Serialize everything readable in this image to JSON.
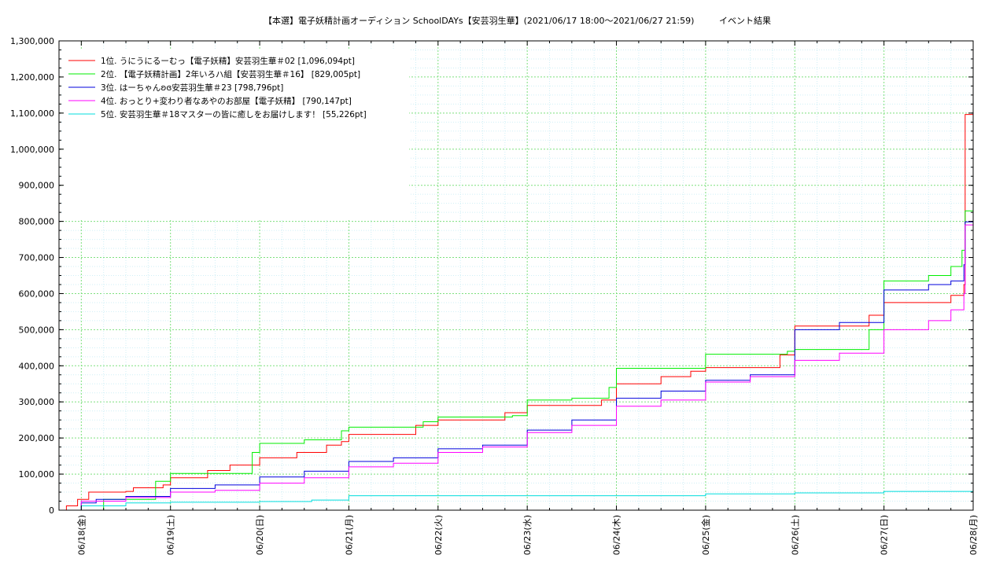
{
  "chart_data": {
    "type": "line",
    "title": "【本選】電子妖精計画オーディション SchoolDAYs【安芸羽生華】(2021/06/17 18:00〜2021/06/27 21:59)",
    "subtitle": "イベント結果",
    "ylim": [
      0,
      1300000
    ],
    "yticks": [
      "0",
      "100,000",
      "200,000",
      "300,000",
      "400,000",
      "500,000",
      "600,000",
      "700,000",
      "800,000",
      "900,000",
      "1,000,000",
      "1,100,000",
      "1,200,000",
      "1,300,000"
    ],
    "ytick_step": 100000,
    "x_start": "2021/06/17 18:00",
    "x_end": "2021/06/28 00:00",
    "xticks": [
      {
        "date": "2021/06/18",
        "label": "06/18(金)"
      },
      {
        "date": "2021/06/19",
        "label": "06/19(土)"
      },
      {
        "date": "2021/06/20",
        "label": "06/20(日)"
      },
      {
        "date": "2021/06/21",
        "label": "06/21(月)"
      },
      {
        "date": "2021/06/22",
        "label": "06/22(火)"
      },
      {
        "date": "2021/06/23",
        "label": "06/23(水)"
      },
      {
        "date": "2021/06/24",
        "label": "06/24(木)"
      },
      {
        "date": "2021/06/25",
        "label": "06/25(金)"
      },
      {
        "date": "2021/06/26",
        "label": "06/26(土)"
      },
      {
        "date": "2021/06/27",
        "label": "06/27(日)"
      },
      {
        "date": "2021/06/28",
        "label": "06/28(月)"
      }
    ],
    "grid": true,
    "legend_position": "top-left",
    "series": [
      {
        "name": "1位. うにうにるーむっ【電子妖精】安芸羽生華＃02 [1,096,094pt]",
        "color": "#ff0000",
        "points": [
          [
            "2021/06/17 18:00",
            0
          ],
          [
            "2021/06/17 20:00",
            12000
          ],
          [
            "2021/06/17 23:00",
            30000
          ],
          [
            "2021/06/18 02:00",
            50000
          ],
          [
            "2021/06/18 12:00",
            52000
          ],
          [
            "2021/06/18 14:00",
            62000
          ],
          [
            "2021/06/18 22:00",
            70000
          ],
          [
            "2021/06/19 00:00",
            90000
          ],
          [
            "2021/06/19 10:00",
            110000
          ],
          [
            "2021/06/19 16:00",
            125000
          ],
          [
            "2021/06/20 00:00",
            145000
          ],
          [
            "2021/06/20 10:00",
            160000
          ],
          [
            "2021/06/20 18:00",
            180000
          ],
          [
            "2021/06/20 22:00",
            190000
          ],
          [
            "2021/06/21 00:00",
            210000
          ],
          [
            "2021/06/21 18:00",
            235000
          ],
          [
            "2021/06/22 00:00",
            250000
          ],
          [
            "2021/06/22 18:00",
            270000
          ],
          [
            "2021/06/23 00:00",
            290000
          ],
          [
            "2021/06/23 20:00",
            305000
          ],
          [
            "2021/06/24 00:00",
            350000
          ],
          [
            "2021/06/24 12:00",
            370000
          ],
          [
            "2021/06/24 20:00",
            385000
          ],
          [
            "2021/06/25 00:00",
            395000
          ],
          [
            "2021/06/25 20:00",
            430000
          ],
          [
            "2021/06/26 00:00",
            510000
          ],
          [
            "2021/06/26 20:00",
            540000
          ],
          [
            "2021/06/27 00:00",
            575000
          ],
          [
            "2021/06/27 18:00",
            595000
          ],
          [
            "2021/06/27 21:30",
            625000
          ],
          [
            "2021/06/27 21:50",
            1096094
          ],
          [
            "2021/06/28 00:00",
            1096094
          ]
        ]
      },
      {
        "name": "2位. 【電子妖精計画】2年いろハ組【安芸羽生華＃16】 [829,005pt]",
        "color": "#00ee00",
        "points": [
          [
            "2021/06/17 18:00",
            0
          ],
          [
            "2021/06/18 06:00",
            30000
          ],
          [
            "2021/06/18 20:00",
            80000
          ],
          [
            "2021/06/19 00:00",
            102000
          ],
          [
            "2021/06/19 20:00",
            102000
          ],
          [
            "2021/06/19 22:00",
            160000
          ],
          [
            "2021/06/20 00:00",
            185000
          ],
          [
            "2021/06/20 12:00",
            195000
          ],
          [
            "2021/06/20 22:00",
            220000
          ],
          [
            "2021/06/21 00:00",
            230000
          ],
          [
            "2021/06/21 20:00",
            245000
          ],
          [
            "2021/06/22 00:00",
            258000
          ],
          [
            "2021/06/22 20:00",
            262000
          ],
          [
            "2021/06/23 00:00",
            305000
          ],
          [
            "2021/06/23 12:00",
            310000
          ],
          [
            "2021/06/23 22:00",
            340000
          ],
          [
            "2021/06/24 00:00",
            393000
          ],
          [
            "2021/06/24 22:00",
            393000
          ],
          [
            "2021/06/25 00:00",
            432000
          ],
          [
            "2021/06/25 22:00",
            440000
          ],
          [
            "2021/06/26 00:00",
            445000
          ],
          [
            "2021/06/26 20:00",
            500000
          ],
          [
            "2021/06/27 00:00",
            635000
          ],
          [
            "2021/06/27 12:00",
            650000
          ],
          [
            "2021/06/27 18:00",
            675000
          ],
          [
            "2021/06/27 21:00",
            720000
          ],
          [
            "2021/06/27 21:50",
            829005
          ],
          [
            "2021/06/28 00:00",
            829005
          ]
        ]
      },
      {
        "name": "3位. はーちゃんʚɞ安芸羽生華＃23 [798,796pt]",
        "color": "#0000dd",
        "points": [
          [
            "2021/06/17 18:00",
            0
          ],
          [
            "2021/06/18 00:00",
            20000
          ],
          [
            "2021/06/18 04:00",
            30000
          ],
          [
            "2021/06/18 12:00",
            38000
          ],
          [
            "2021/06/19 00:00",
            60000
          ],
          [
            "2021/06/19 12:00",
            70000
          ],
          [
            "2021/06/20 00:00",
            92000
          ],
          [
            "2021/06/20 12:00",
            108000
          ],
          [
            "2021/06/21 00:00",
            135000
          ],
          [
            "2021/06/21 12:00",
            145000
          ],
          [
            "2021/06/22 00:00",
            170000
          ],
          [
            "2021/06/22 12:00",
            180000
          ],
          [
            "2021/06/23 00:00",
            222000
          ],
          [
            "2021/06/23 12:00",
            250000
          ],
          [
            "2021/06/24 00:00",
            310000
          ],
          [
            "2021/06/24 12:00",
            330000
          ],
          [
            "2021/06/25 00:00",
            360000
          ],
          [
            "2021/06/25 12:00",
            375000
          ],
          [
            "2021/06/26 00:00",
            500000
          ],
          [
            "2021/06/26 12:00",
            520000
          ],
          [
            "2021/06/27 00:00",
            610000
          ],
          [
            "2021/06/27 12:00",
            625000
          ],
          [
            "2021/06/27 18:00",
            635000
          ],
          [
            "2021/06/27 21:30",
            680000
          ],
          [
            "2021/06/27 21:50",
            798796
          ],
          [
            "2021/06/28 00:00",
            798796
          ]
        ]
      },
      {
        "name": "4位. おっとり+変わり者なあやのお部屋【電子妖精】 [790,147pt]",
        "color": "#ff00ff",
        "points": [
          [
            "2021/06/17 18:00",
            0
          ],
          [
            "2021/06/18 00:00",
            25000
          ],
          [
            "2021/06/18 12:00",
            35000
          ],
          [
            "2021/06/19 00:00",
            50000
          ],
          [
            "2021/06/19 12:00",
            55000
          ],
          [
            "2021/06/20 00:00",
            75000
          ],
          [
            "2021/06/20 12:00",
            90000
          ],
          [
            "2021/06/21 00:00",
            120000
          ],
          [
            "2021/06/21 12:00",
            130000
          ],
          [
            "2021/06/22 00:00",
            160000
          ],
          [
            "2021/06/22 12:00",
            175000
          ],
          [
            "2021/06/23 00:00",
            215000
          ],
          [
            "2021/06/23 12:00",
            235000
          ],
          [
            "2021/06/24 00:00",
            288000
          ],
          [
            "2021/06/24 12:00",
            305000
          ],
          [
            "2021/06/25 00:00",
            355000
          ],
          [
            "2021/06/25 12:00",
            370000
          ],
          [
            "2021/06/26 00:00",
            415000
          ],
          [
            "2021/06/26 12:00",
            435000
          ],
          [
            "2021/06/27 00:00",
            500000
          ],
          [
            "2021/06/27 12:00",
            525000
          ],
          [
            "2021/06/27 18:00",
            555000
          ],
          [
            "2021/06/27 21:30",
            600000
          ],
          [
            "2021/06/27 21:50",
            790147
          ],
          [
            "2021/06/28 00:00",
            790147
          ]
        ]
      },
      {
        "name": "5位. 安芸羽生華＃18マスターの皆に癒しをお届けします！ [55,226pt]",
        "color": "#00dddd",
        "points": [
          [
            "2021/06/17 18:00",
            0
          ],
          [
            "2021/06/18 00:00",
            12000
          ],
          [
            "2021/06/18 12:00",
            20000
          ],
          [
            "2021/06/19 00:00",
            22000
          ],
          [
            "2021/06/20 00:00",
            24000
          ],
          [
            "2021/06/20 14:00",
            28000
          ],
          [
            "2021/06/21 00:00",
            40000
          ],
          [
            "2021/06/22 00:00",
            40000
          ],
          [
            "2021/06/23 00:00",
            40000
          ],
          [
            "2021/06/24 00:00",
            40000
          ],
          [
            "2021/06/25 00:00",
            45000
          ],
          [
            "2021/06/26 00:00",
            48000
          ],
          [
            "2021/06/27 00:00",
            52000
          ],
          [
            "2021/06/28 00:00",
            55226
          ]
        ]
      }
    ]
  }
}
